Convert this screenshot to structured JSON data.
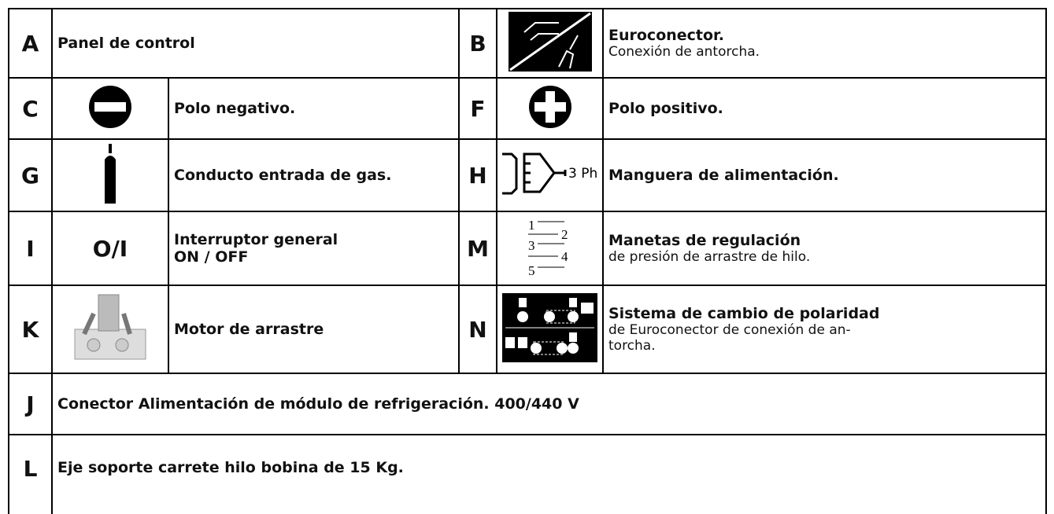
{
  "items": [
    {
      "letter": "A",
      "title": "Panel de control"
    },
    {
      "letter": "B",
      "title": "Euroconector.",
      "text": [
        "Conexión de antorcha."
      ]
    },
    {
      "letter": "C",
      "title": "Polo negativo."
    },
    {
      "letter": "F",
      "title": "Polo positivo."
    },
    {
      "letter": "G",
      "title": "Conducto entrada de gas."
    },
    {
      "letter": "H",
      "icon_text": "3 Ph",
      "title": "Manguera de alimentación."
    },
    {
      "letter": "I",
      "icon_text": "O/I",
      "title": "Interruptor general",
      "title2": "ON / OFF"
    },
    {
      "letter": "M",
      "icon_digits": [
        "1",
        "2",
        "3",
        "4",
        "5"
      ],
      "title": "Manetas de regulación",
      "text": [
        "de presión de arrastre de hilo."
      ]
    },
    {
      "letter": "K",
      "title": "Motor de arrastre"
    },
    {
      "letter": "N",
      "title": "Sistema de cambio de polaridad",
      "text": [
        "de Euroconector de conexión de an-",
        "torcha."
      ]
    },
    {
      "letter": "J",
      "title": "Conector Alimentación de módulo de refrigeración. 400/440 V"
    },
    {
      "letter": "L",
      "title": "Eje soporte carrete hilo bobina de 15 Kg."
    }
  ]
}
